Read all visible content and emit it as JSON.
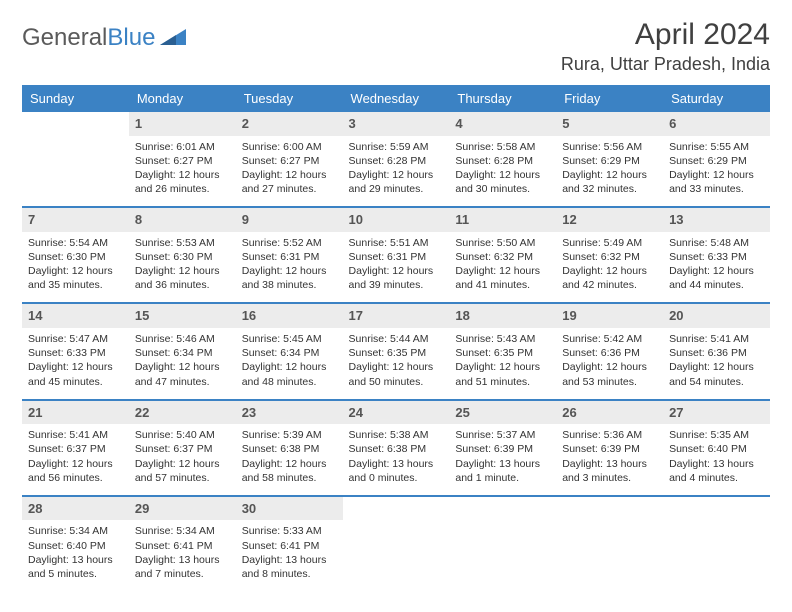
{
  "brand": {
    "part1": "General",
    "part2": "Blue"
  },
  "title": "April 2024",
  "location": "Rura, Uttar Pradesh, India",
  "colors": {
    "header_bg": "#3b82c4",
    "header_fg": "#ffffff",
    "daynum_bg": "#ececec",
    "daynum_fg": "#555555",
    "text": "#333333",
    "logo_gray": "#5a5a5a",
    "logo_blue": "#3b82c4"
  },
  "weekdays": [
    "Sunday",
    "Monday",
    "Tuesday",
    "Wednesday",
    "Thursday",
    "Friday",
    "Saturday"
  ],
  "weeks": [
    [
      {
        "blank": true
      },
      {
        "day": "1",
        "sunrise": "Sunrise: 6:01 AM",
        "sunset": "Sunset: 6:27 PM",
        "dl1": "Daylight: 12 hours",
        "dl2": "and 26 minutes."
      },
      {
        "day": "2",
        "sunrise": "Sunrise: 6:00 AM",
        "sunset": "Sunset: 6:27 PM",
        "dl1": "Daylight: 12 hours",
        "dl2": "and 27 minutes."
      },
      {
        "day": "3",
        "sunrise": "Sunrise: 5:59 AM",
        "sunset": "Sunset: 6:28 PM",
        "dl1": "Daylight: 12 hours",
        "dl2": "and 29 minutes."
      },
      {
        "day": "4",
        "sunrise": "Sunrise: 5:58 AM",
        "sunset": "Sunset: 6:28 PM",
        "dl1": "Daylight: 12 hours",
        "dl2": "and 30 minutes."
      },
      {
        "day": "5",
        "sunrise": "Sunrise: 5:56 AM",
        "sunset": "Sunset: 6:29 PM",
        "dl1": "Daylight: 12 hours",
        "dl2": "and 32 minutes."
      },
      {
        "day": "6",
        "sunrise": "Sunrise: 5:55 AM",
        "sunset": "Sunset: 6:29 PM",
        "dl1": "Daylight: 12 hours",
        "dl2": "and 33 minutes."
      }
    ],
    [
      {
        "day": "7",
        "sunrise": "Sunrise: 5:54 AM",
        "sunset": "Sunset: 6:30 PM",
        "dl1": "Daylight: 12 hours",
        "dl2": "and 35 minutes."
      },
      {
        "day": "8",
        "sunrise": "Sunrise: 5:53 AM",
        "sunset": "Sunset: 6:30 PM",
        "dl1": "Daylight: 12 hours",
        "dl2": "and 36 minutes."
      },
      {
        "day": "9",
        "sunrise": "Sunrise: 5:52 AM",
        "sunset": "Sunset: 6:31 PM",
        "dl1": "Daylight: 12 hours",
        "dl2": "and 38 minutes."
      },
      {
        "day": "10",
        "sunrise": "Sunrise: 5:51 AM",
        "sunset": "Sunset: 6:31 PM",
        "dl1": "Daylight: 12 hours",
        "dl2": "and 39 minutes."
      },
      {
        "day": "11",
        "sunrise": "Sunrise: 5:50 AM",
        "sunset": "Sunset: 6:32 PM",
        "dl1": "Daylight: 12 hours",
        "dl2": "and 41 minutes."
      },
      {
        "day": "12",
        "sunrise": "Sunrise: 5:49 AM",
        "sunset": "Sunset: 6:32 PM",
        "dl1": "Daylight: 12 hours",
        "dl2": "and 42 minutes."
      },
      {
        "day": "13",
        "sunrise": "Sunrise: 5:48 AM",
        "sunset": "Sunset: 6:33 PM",
        "dl1": "Daylight: 12 hours",
        "dl2": "and 44 minutes."
      }
    ],
    [
      {
        "day": "14",
        "sunrise": "Sunrise: 5:47 AM",
        "sunset": "Sunset: 6:33 PM",
        "dl1": "Daylight: 12 hours",
        "dl2": "and 45 minutes."
      },
      {
        "day": "15",
        "sunrise": "Sunrise: 5:46 AM",
        "sunset": "Sunset: 6:34 PM",
        "dl1": "Daylight: 12 hours",
        "dl2": "and 47 minutes."
      },
      {
        "day": "16",
        "sunrise": "Sunrise: 5:45 AM",
        "sunset": "Sunset: 6:34 PM",
        "dl1": "Daylight: 12 hours",
        "dl2": "and 48 minutes."
      },
      {
        "day": "17",
        "sunrise": "Sunrise: 5:44 AM",
        "sunset": "Sunset: 6:35 PM",
        "dl1": "Daylight: 12 hours",
        "dl2": "and 50 minutes."
      },
      {
        "day": "18",
        "sunrise": "Sunrise: 5:43 AM",
        "sunset": "Sunset: 6:35 PM",
        "dl1": "Daylight: 12 hours",
        "dl2": "and 51 minutes."
      },
      {
        "day": "19",
        "sunrise": "Sunrise: 5:42 AM",
        "sunset": "Sunset: 6:36 PM",
        "dl1": "Daylight: 12 hours",
        "dl2": "and 53 minutes."
      },
      {
        "day": "20",
        "sunrise": "Sunrise: 5:41 AM",
        "sunset": "Sunset: 6:36 PM",
        "dl1": "Daylight: 12 hours",
        "dl2": "and 54 minutes."
      }
    ],
    [
      {
        "day": "21",
        "sunrise": "Sunrise: 5:41 AM",
        "sunset": "Sunset: 6:37 PM",
        "dl1": "Daylight: 12 hours",
        "dl2": "and 56 minutes."
      },
      {
        "day": "22",
        "sunrise": "Sunrise: 5:40 AM",
        "sunset": "Sunset: 6:37 PM",
        "dl1": "Daylight: 12 hours",
        "dl2": "and 57 minutes."
      },
      {
        "day": "23",
        "sunrise": "Sunrise: 5:39 AM",
        "sunset": "Sunset: 6:38 PM",
        "dl1": "Daylight: 12 hours",
        "dl2": "and 58 minutes."
      },
      {
        "day": "24",
        "sunrise": "Sunrise: 5:38 AM",
        "sunset": "Sunset: 6:38 PM",
        "dl1": "Daylight: 13 hours",
        "dl2": "and 0 minutes."
      },
      {
        "day": "25",
        "sunrise": "Sunrise: 5:37 AM",
        "sunset": "Sunset: 6:39 PM",
        "dl1": "Daylight: 13 hours",
        "dl2": "and 1 minute."
      },
      {
        "day": "26",
        "sunrise": "Sunrise: 5:36 AM",
        "sunset": "Sunset: 6:39 PM",
        "dl1": "Daylight: 13 hours",
        "dl2": "and 3 minutes."
      },
      {
        "day": "27",
        "sunrise": "Sunrise: 5:35 AM",
        "sunset": "Sunset: 6:40 PM",
        "dl1": "Daylight: 13 hours",
        "dl2": "and 4 minutes."
      }
    ],
    [
      {
        "day": "28",
        "sunrise": "Sunrise: 5:34 AM",
        "sunset": "Sunset: 6:40 PM",
        "dl1": "Daylight: 13 hours",
        "dl2": "and 5 minutes."
      },
      {
        "day": "29",
        "sunrise": "Sunrise: 5:34 AM",
        "sunset": "Sunset: 6:41 PM",
        "dl1": "Daylight: 13 hours",
        "dl2": "and 7 minutes."
      },
      {
        "day": "30",
        "sunrise": "Sunrise: 5:33 AM",
        "sunset": "Sunset: 6:41 PM",
        "dl1": "Daylight: 13 hours",
        "dl2": "and 8 minutes."
      },
      {
        "blank": true
      },
      {
        "blank": true
      },
      {
        "blank": true
      },
      {
        "blank": true
      }
    ]
  ]
}
